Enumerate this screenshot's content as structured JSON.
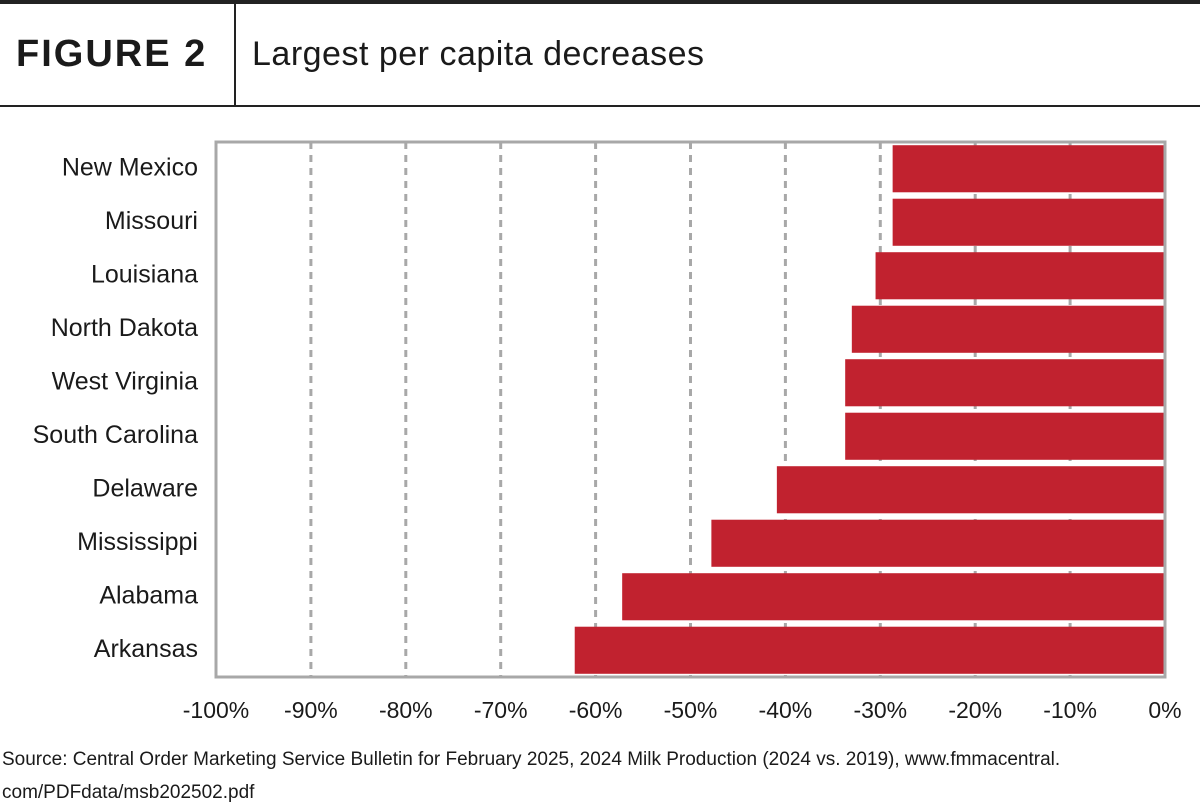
{
  "chart_data": {
    "type": "bar",
    "orientation": "horizontal",
    "figure_label": "FIGURE 2",
    "title": "Largest per capita decreases",
    "categories": [
      "New Mexico",
      "Missouri",
      "Louisiana",
      "North Dakota",
      "West Virginia",
      "South Carolina",
      "Delaware",
      "Mississippi",
      "Alabama",
      "Arkansas"
    ],
    "values": [
      -28.7,
      -28.7,
      -30.5,
      -33.0,
      -33.7,
      -33.7,
      -40.9,
      -47.8,
      -57.2,
      -62.2
    ],
    "color": "#c1222f",
    "xlim": [
      -100,
      0
    ],
    "xticks": [
      {
        "value": -100,
        "label": "-100%"
      },
      {
        "value": -90,
        "label": "-90%"
      },
      {
        "value": -80,
        "label": "-80%"
      },
      {
        "value": -70,
        "label": "-70%"
      },
      {
        "value": -60,
        "label": "-60%"
      },
      {
        "value": -50,
        "label": "-50%"
      },
      {
        "value": -40,
        "label": "-40%"
      },
      {
        "value": -30,
        "label": "-30%"
      },
      {
        "value": -20,
        "label": "-20%"
      },
      {
        "value": -10,
        "label": "-10%"
      },
      {
        "value": 0,
        "label": "0%"
      }
    ],
    "grid": true,
    "source": [
      "Source: Central Order Marketing Service Bulletin for February 2025, 2024 Milk Production (2024 vs. 2019), www.fmmacentral.",
      "com/PDFdata/msb202502.pdf"
    ]
  }
}
